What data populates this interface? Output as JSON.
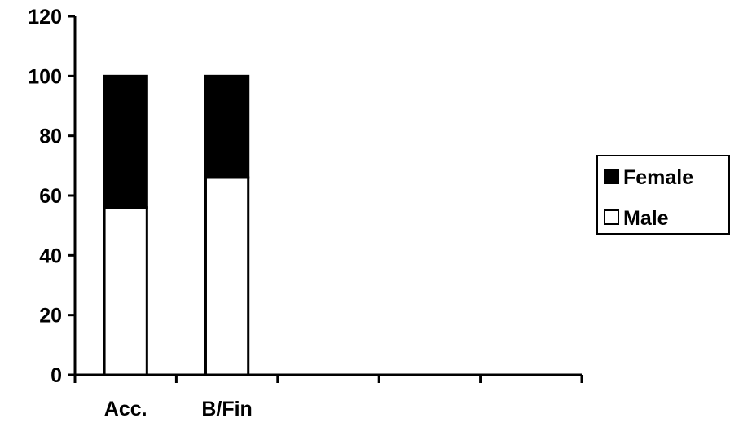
{
  "chart_data": {
    "type": "bar",
    "stacked": true,
    "categories": [
      "Acc.",
      "B/Fin",
      "",
      "",
      ""
    ],
    "series": [
      {
        "name": "Male",
        "values": [
          56,
          66,
          null,
          null,
          null
        ],
        "color": "#ffffff"
      },
      {
        "name": "Female",
        "values": [
          44,
          34,
          null,
          null,
          null
        ],
        "color": "#000000"
      }
    ],
    "ylim": [
      0,
      120
    ],
    "yticks": [
      0,
      20,
      40,
      60,
      80,
      100,
      120
    ],
    "grid": false,
    "legend": {
      "position": "right",
      "entries": [
        {
          "name": "Female",
          "color": "#000000"
        },
        {
          "name": "Male",
          "color": "#ffffff"
        }
      ]
    }
  }
}
